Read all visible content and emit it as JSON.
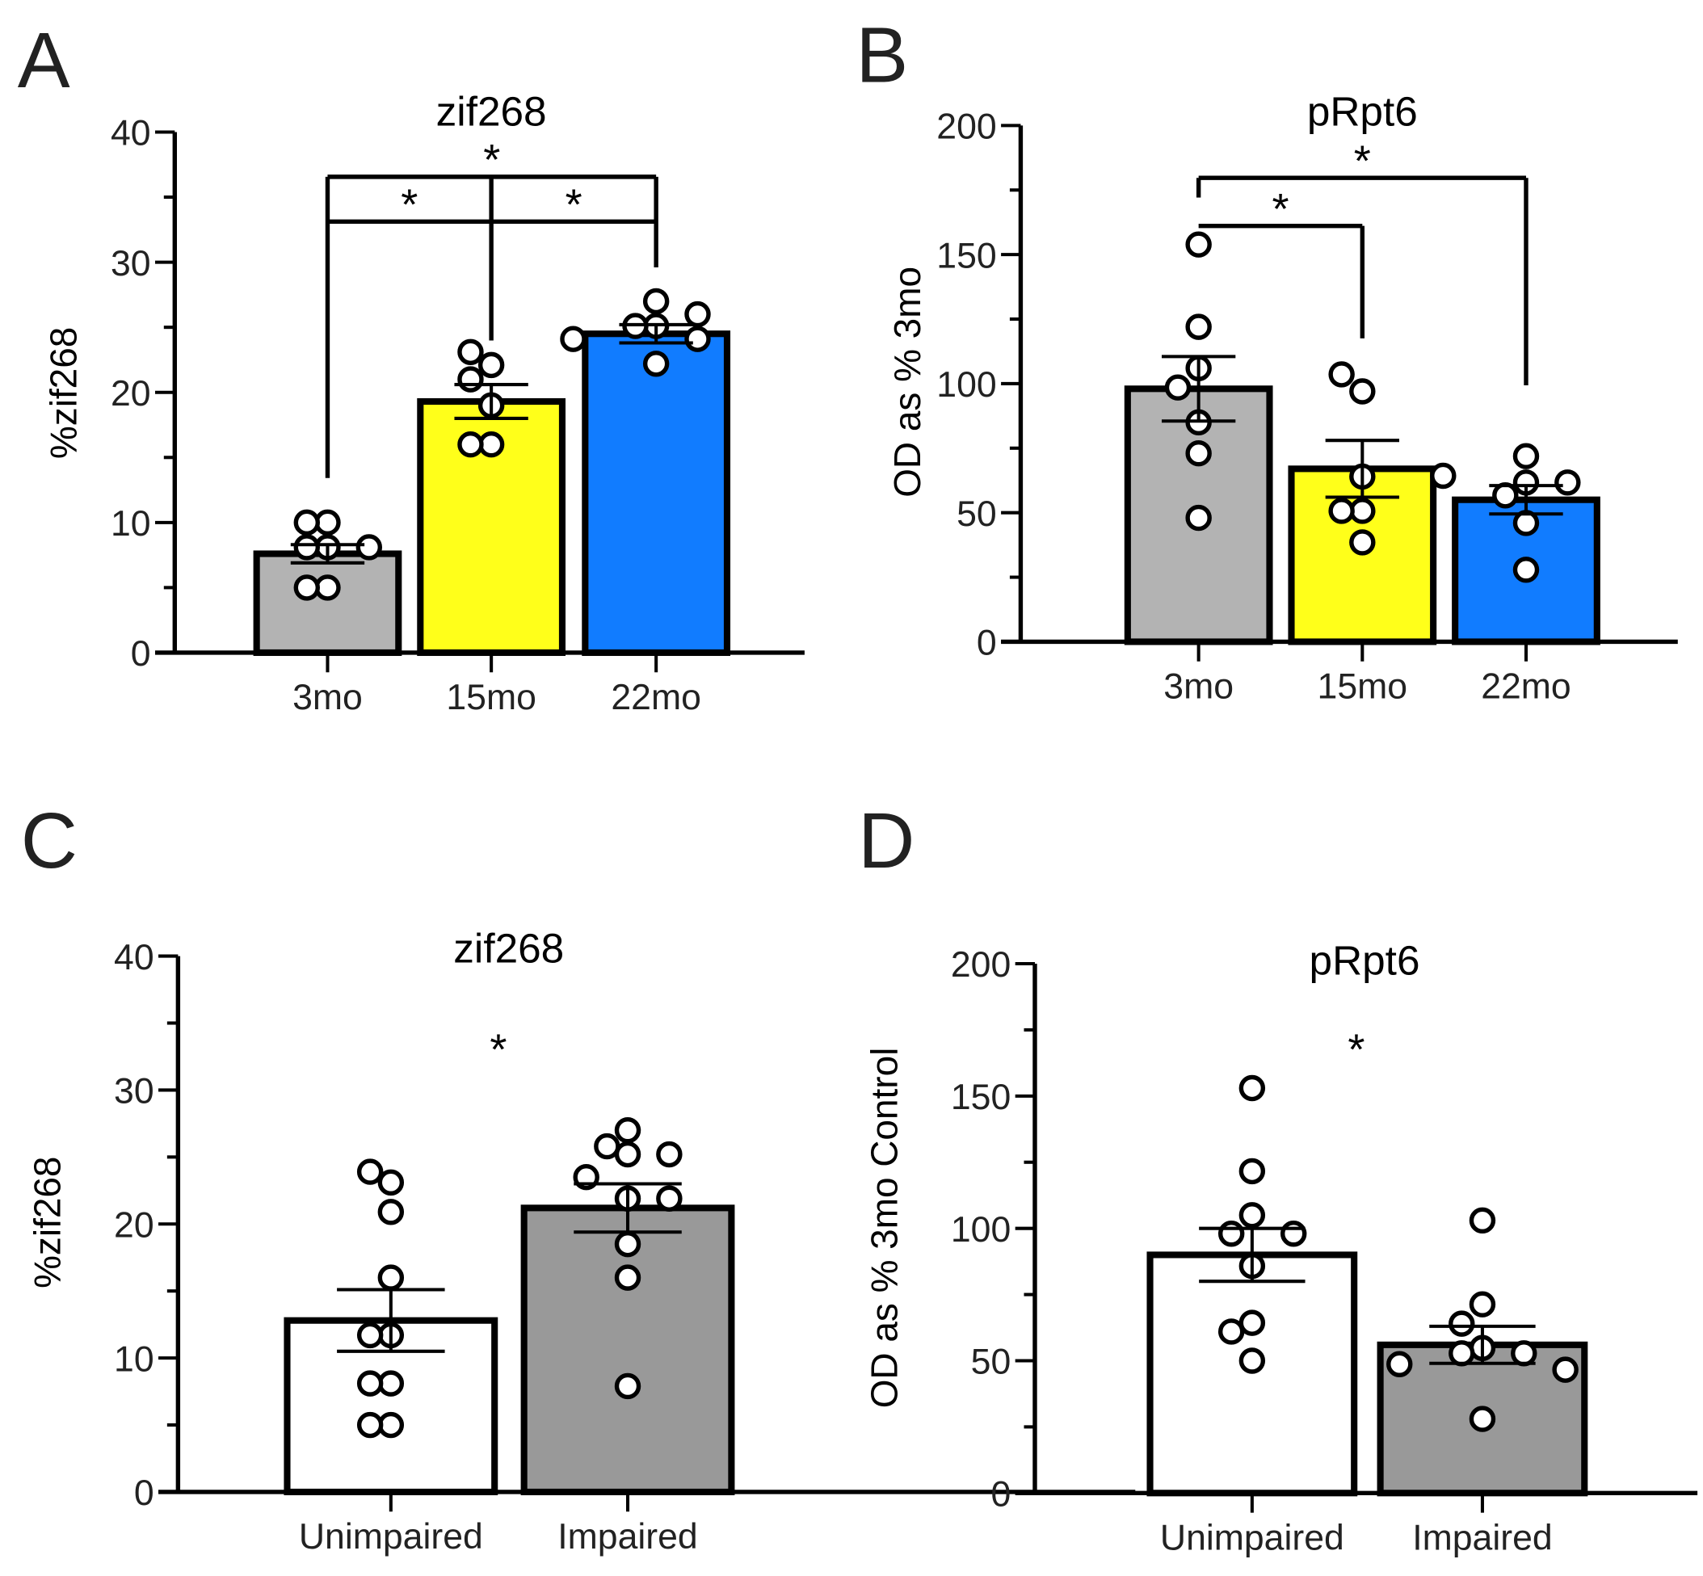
{
  "chart_data": [
    {
      "panel": "A",
      "type": "bar",
      "title": "zif268",
      "xlabel": "",
      "ylabel": "%zif268",
      "ylim": [
        0,
        40
      ],
      "yticks": [
        0,
        10,
        20,
        30,
        40
      ],
      "minor_step": 5,
      "categories": [
        "3mo",
        "15mo",
        "22mo"
      ],
      "colors": [
        "#b3b3b3",
        "#ffff1a",
        "#117cff"
      ],
      "means": [
        7.6,
        19.3,
        24.5
      ],
      "sem": [
        0.7,
        1.3,
        0.7
      ],
      "points": [
        [
          10,
          10,
          8.1,
          8.1,
          8.1,
          5,
          5
        ],
        [
          22.1,
          23.1,
          21,
          19,
          16,
          16
        ],
        [
          25.1,
          27,
          25.1,
          26,
          24.1,
          24.1,
          22.2
        ]
      ],
      "significance": [
        {
          "from": 0,
          "to": 2,
          "label": "*",
          "level": 2
        },
        {
          "from": 0,
          "to": 1,
          "label": "*",
          "level": 1
        },
        {
          "from": 1,
          "to": 2,
          "label": "*",
          "level": 1
        }
      ]
    },
    {
      "panel": "B",
      "type": "bar",
      "title": "pRpt6",
      "xlabel": "",
      "ylabel": "OD as  % 3mo",
      "ylim": [
        0,
        200
      ],
      "yticks": [
        0,
        50,
        100,
        150,
        200
      ],
      "minor_step": 25,
      "categories": [
        "3mo",
        "15mo",
        "22mo"
      ],
      "colors": [
        "#b3b3b3",
        "#ffff1a",
        "#117cff"
      ],
      "means": [
        98,
        67,
        55
      ],
      "sem": [
        12.5,
        11,
        5.5
      ],
      "points": [
        [
          153.9,
          122,
          106,
          98.5,
          85,
          73,
          48
        ],
        [
          97,
          103.6,
          64,
          50.7,
          50.7,
          38.5
        ],
        [
          71.9,
          61.7,
          56.7,
          61.7,
          64.3,
          46,
          27.9
        ]
      ],
      "significance": [
        {
          "from": 0,
          "to": 2,
          "label": "*",
          "level": 2
        },
        {
          "from": 0,
          "to": 1,
          "label": "*",
          "level": 1
        }
      ]
    },
    {
      "panel": "C",
      "type": "bar",
      "title": "zif268",
      "xlabel": "",
      "ylabel": "%zif268",
      "ylim": [
        0,
        40
      ],
      "yticks": [
        0,
        10,
        20,
        30,
        40
      ],
      "minor_step": 5,
      "categories": [
        "Unimpaired",
        "Impaired"
      ],
      "colors": [
        "#ffffff",
        "#999999"
      ],
      "means": [
        12.8,
        21.2
      ],
      "sem": [
        2.3,
        1.8
      ],
      "points": [
        [
          23.1,
          23.9,
          20.9,
          16,
          11.7,
          11.7,
          8.1,
          8.1,
          5,
          5
        ],
        [
          27,
          25.8,
          25.2,
          25.2,
          23.5,
          21.9,
          21.9,
          18.5,
          16,
          7.9
        ]
      ],
      "significance": [
        {
          "from": 0,
          "to": 1,
          "label": "*",
          "level": 0
        }
      ]
    },
    {
      "panel": "D",
      "type": "bar",
      "title": "pRpt6",
      "xlabel": "",
      "ylabel": "OD as  % 3mo Control",
      "ylim": [
        0,
        200
      ],
      "yticks": [
        0,
        50,
        100,
        150,
        200
      ],
      "minor_step": 25,
      "categories": [
        "Unimpaired",
        "Impaired"
      ],
      "colors": [
        "#ffffff",
        "#999999"
      ],
      "means": [
        90,
        56
      ],
      "sem": [
        10,
        7
      ],
      "points": [
        [
          153,
          121.6,
          105,
          98,
          98,
          85.8,
          64.3,
          61,
          50
        ],
        [
          103,
          71.3,
          64,
          54.8,
          52.8,
          52.8,
          48.7,
          46.6,
          28
        ]
      ],
      "significance": [
        {
          "from": 0,
          "to": 1,
          "label": "*",
          "level": 0
        }
      ]
    }
  ]
}
